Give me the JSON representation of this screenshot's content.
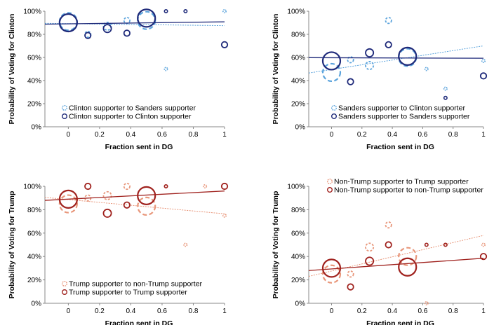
{
  "chart_data": [
    {
      "type": "scatter",
      "xlabel": "Fraction sent in DG",
      "ylabel": "Probability of Voting for Clinton",
      "xlim": [
        -0.15,
        1.0
      ],
      "ylim": [
        0,
        100
      ],
      "xticks": [
        "0",
        "0.2",
        "0.4",
        "0.6",
        "0.8",
        "1"
      ],
      "yticks": [
        "0%",
        "20%",
        "40%",
        "60%",
        "80%",
        "100%"
      ],
      "legend_position": "bottom-left",
      "series": [
        {
          "name": "Clinton supporter to Sanders supporter",
          "color": "#5aa3dc",
          "dashed": true,
          "points": [
            [
              0,
              91,
              3
            ],
            [
              0.125,
              80,
              1
            ],
            [
              0.25,
              87,
              2
            ],
            [
              0.375,
              92,
              1
            ],
            [
              0.5,
              92,
              4
            ],
            [
              0.625,
              50,
              0
            ],
            [
              1,
              100,
              0
            ]
          ],
          "trend": [
            [
              -0.15,
              89.5
            ],
            [
              1.0,
              87.5
            ]
          ]
        },
        {
          "name": "Clinton supporter to Clinton supporter",
          "color": "#1f2a7a",
          "dashed": false,
          "points": [
            [
              0,
              90,
              4
            ],
            [
              0.125,
              79,
              1
            ],
            [
              0.25,
              85,
              2
            ],
            [
              0.375,
              81,
              1
            ],
            [
              0.5,
              94,
              4
            ],
            [
              0.625,
              100,
              0
            ],
            [
              0.75,
              100,
              0
            ],
            [
              1,
              71,
              1
            ]
          ],
          "trend": [
            [
              -0.15,
              88.8
            ],
            [
              1.0,
              90.8
            ]
          ]
        }
      ]
    },
    {
      "type": "scatter",
      "xlabel": "Fraction sent in DG",
      "ylabel": "Probability of Voting for Clinton",
      "xlim": [
        -0.15,
        1.0
      ],
      "ylim": [
        0,
        100
      ],
      "xticks": [
        "0",
        "0.2",
        "0.4",
        "0.6",
        "0.8",
        "1"
      ],
      "yticks": [
        "0%",
        "20%",
        "40%",
        "60%",
        "80%",
        "100%"
      ],
      "legend_position": "bottom-left",
      "series": [
        {
          "name": "Sanders supporter to Clinton supporter",
          "color": "#5aa3dc",
          "dashed": true,
          "points": [
            [
              0,
              47,
              4
            ],
            [
              0.125,
              58,
              1
            ],
            [
              0.25,
              53,
              2
            ],
            [
              0.375,
              92,
              1
            ],
            [
              0.5,
              60,
              4
            ],
            [
              0.625,
              50,
              0
            ],
            [
              0.75,
              33,
              0
            ],
            [
              1,
              57,
              0
            ]
          ],
          "trend": [
            [
              -0.15,
              46.5
            ],
            [
              1.0,
              70
            ]
          ]
        },
        {
          "name": "Sanders supporter to Sanders supporter",
          "color": "#1f2a7a",
          "dashed": false,
          "points": [
            [
              0,
              57,
              3
            ],
            [
              0.125,
              39,
              1
            ],
            [
              0.25,
              64,
              2
            ],
            [
              0.375,
              71,
              1
            ],
            [
              0.5,
              61,
              4
            ],
            [
              0.75,
              25,
              0
            ],
            [
              1,
              44,
              1
            ]
          ],
          "trend": [
            [
              -0.15,
              59.8
            ],
            [
              1.0,
              59.3
            ]
          ]
        }
      ]
    },
    {
      "type": "scatter",
      "xlabel": "Fraction sent in DG",
      "ylabel": "Probability of Voting for Trump",
      "xlim": [
        -0.15,
        1.0
      ],
      "ylim": [
        0,
        100
      ],
      "xticks": [
        "0",
        "0.2",
        "0.4",
        "0.6",
        "0.8",
        "1"
      ],
      "yticks": [
        "0%",
        "20%",
        "40%",
        "60%",
        "80%",
        "100%"
      ],
      "legend_position": "bottom-left",
      "series": [
        {
          "name": "Trump supporter to non-Trump supporter",
          "color": "#e8967a",
          "dashed": true,
          "points": [
            [
              0,
              85,
              4
            ],
            [
              0.125,
              90,
              1
            ],
            [
              0.25,
              92,
              2
            ],
            [
              0.375,
              100,
              1
            ],
            [
              0.5,
              83,
              4
            ],
            [
              0.625,
              100,
              0
            ],
            [
              0.75,
              50,
              0
            ],
            [
              0.875,
              100,
              0
            ],
            [
              1,
              75,
              0
            ]
          ],
          "trend": [
            [
              -0.15,
              90.5
            ],
            [
              1.0,
              76.5
            ]
          ]
        },
        {
          "name": "Trump supporter to Trump supporter",
          "color": "#a0221e",
          "dashed": false,
          "points": [
            [
              0,
              89,
              4
            ],
            [
              0.125,
              100,
              1
            ],
            [
              0.25,
              77,
              2
            ],
            [
              0.375,
              84,
              1
            ],
            [
              0.5,
              92,
              4
            ],
            [
              0.625,
              100,
              0
            ],
            [
              1,
              100,
              1
            ]
          ],
          "trend": [
            [
              -0.15,
              88
            ],
            [
              1.0,
              96
            ]
          ]
        }
      ]
    },
    {
      "type": "scatter",
      "xlabel": "Fraction sent in DG",
      "ylabel": "Probability of Voting for Trump",
      "xlim": [
        -0.15,
        1.0
      ],
      "ylim": [
        0,
        100
      ],
      "xticks": [
        "0",
        "0.2",
        "0.4",
        "0.6",
        "0.8",
        "1"
      ],
      "yticks": [
        "0%",
        "20%",
        "40%",
        "60%",
        "80%",
        "100%"
      ],
      "legend_position": "top-left",
      "series": [
        {
          "name": "Non-Trump supporter to Trump supporter",
          "color": "#e8967a",
          "dashed": true,
          "points": [
            [
              0,
              25,
              4
            ],
            [
              0.125,
              25,
              1
            ],
            [
              0.25,
              48,
              2
            ],
            [
              0.375,
              67,
              1
            ],
            [
              0.5,
              40,
              4
            ],
            [
              0.625,
              0,
              0
            ],
            [
              0.75,
              50,
              0
            ],
            [
              1,
              50,
              0
            ]
          ],
          "trend": [
            [
              -0.15,
              23
            ],
            [
              1.0,
              58
            ]
          ]
        },
        {
          "name": "Non-Trump supporter to non-Trump supporter",
          "color": "#a0221e",
          "dashed": false,
          "points": [
            [
              0,
              30,
              3
            ],
            [
              0.125,
              14,
              1
            ],
            [
              0.25,
              36,
              2
            ],
            [
              0.375,
              50,
              1
            ],
            [
              0.5,
              31,
              4
            ],
            [
              0.625,
              50,
              0
            ],
            [
              0.75,
              50,
              0
            ],
            [
              1,
              40,
              1
            ]
          ],
          "trend": [
            [
              -0.15,
              28
            ],
            [
              1.0,
              38.5
            ]
          ]
        }
      ]
    }
  ]
}
